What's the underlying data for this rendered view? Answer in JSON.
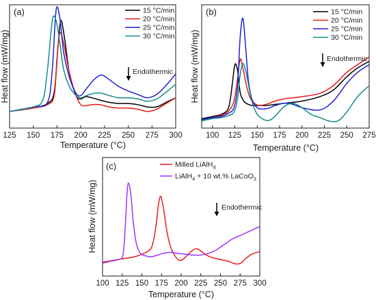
{
  "chart_data": [
    {
      "type": "line",
      "panel_label": "(a)",
      "xlabel": "Temperature (°C)",
      "ylabel": "Heat flow (mW/mg)",
      "xlim": [
        125,
        300
      ],
      "xticks": [
        125,
        150,
        175,
        200,
        225,
        250,
        275,
        300
      ],
      "ylim": [
        0,
        1
      ],
      "yticks_shown": false,
      "grid": false,
      "legend_position": "top-right",
      "annotation": "Endothermic",
      "series": [
        {
          "name": "15 °C/min",
          "color": "#000000",
          "x": [
            125,
            150,
            165,
            172,
            176,
            179,
            183,
            188,
            195,
            200,
            205,
            212,
            220,
            230,
            240,
            250,
            260,
            270,
            280,
            290,
            300
          ],
          "y": [
            0.08,
            0.11,
            0.15,
            0.25,
            0.65,
            0.88,
            0.72,
            0.42,
            0.22,
            0.19,
            0.21,
            0.2,
            0.18,
            0.16,
            0.15,
            0.15,
            0.14,
            0.12,
            0.12,
            0.16,
            0.2
          ]
        },
        {
          "name": "20 °C/min",
          "color": "#e41a1c",
          "x": [
            125,
            150,
            165,
            172,
            175,
            178,
            182,
            188,
            195,
            200,
            205,
            212,
            220,
            230,
            240,
            250,
            260,
            270,
            280,
            290,
            300
          ],
          "y": [
            0.08,
            0.11,
            0.14,
            0.22,
            0.55,
            0.77,
            0.68,
            0.42,
            0.22,
            0.14,
            0.13,
            0.14,
            0.14,
            0.12,
            0.11,
            0.11,
            0.1,
            0.08,
            0.1,
            0.15,
            0.2
          ]
        },
        {
          "name": "25 °C/min",
          "color": "#1f1fd6",
          "x": [
            125,
            150,
            165,
            170,
            174,
            178,
            182,
            188,
            195,
            200,
            206,
            214,
            222,
            230,
            240,
            250,
            260,
            270,
            280,
            290,
            300
          ],
          "y": [
            0.08,
            0.12,
            0.16,
            0.45,
            0.97,
            0.9,
            0.6,
            0.38,
            0.24,
            0.22,
            0.28,
            0.36,
            0.4,
            0.36,
            0.3,
            0.26,
            0.23,
            0.2,
            0.23,
            0.31,
            0.41
          ]
        },
        {
          "name": "30 °C/min",
          "color": "#138a8a",
          "x": [
            125,
            150,
            160,
            165,
            170,
            174,
            178,
            182,
            188,
            195,
            200,
            206,
            214,
            222,
            230,
            240,
            250,
            260,
            270,
            280,
            290,
            300
          ],
          "y": [
            0.08,
            0.12,
            0.18,
            0.45,
            0.88,
            0.88,
            0.68,
            0.45,
            0.3,
            0.22,
            0.2,
            0.22,
            0.24,
            0.24,
            0.22,
            0.2,
            0.2,
            0.19,
            0.17,
            0.19,
            0.25,
            0.32
          ]
        }
      ]
    },
    {
      "type": "line",
      "panel_label": "(b)",
      "xlabel": "Temperature (°C)",
      "ylabel": "Heat flow (mW/mg)",
      "xlim": [
        88,
        275
      ],
      "xticks": [
        100,
        125,
        150,
        175,
        200,
        225,
        250,
        275
      ],
      "ylim": [
        0,
        1
      ],
      "yticks_shown": false,
      "grid": false,
      "legend_position": "top-right",
      "annotation": "Endothermic",
      "series": [
        {
          "name": "15 °C/min",
          "color": "#000000",
          "x": [
            88,
            100,
            110,
            118,
            122,
            125,
            128,
            131,
            135,
            140,
            145,
            150,
            155,
            160,
            170,
            180,
            200,
            220,
            235,
            250,
            262,
            275
          ],
          "y": [
            0.06,
            0.08,
            0.1,
            0.16,
            0.36,
            0.55,
            0.5,
            0.3,
            0.22,
            0.19,
            0.18,
            0.18,
            0.18,
            0.18,
            0.19,
            0.2,
            0.22,
            0.26,
            0.32,
            0.44,
            0.52,
            0.58
          ]
        },
        {
          "name": "20 °C/min",
          "color": "#e41a1c",
          "x": [
            88,
            100,
            110,
            118,
            124,
            128,
            131,
            134,
            138,
            142,
            147,
            152,
            160,
            170,
            180,
            200,
            220,
            235,
            250,
            262,
            275
          ],
          "y": [
            0.05,
            0.07,
            0.09,
            0.13,
            0.22,
            0.42,
            0.6,
            0.52,
            0.36,
            0.25,
            0.2,
            0.18,
            0.19,
            0.22,
            0.24,
            0.26,
            0.29,
            0.36,
            0.48,
            0.55,
            0.62
          ]
        },
        {
          "name": "25 °C/min",
          "color": "#1f1fd6",
          "x": [
            88,
            100,
            110,
            118,
            124,
            128,
            131,
            134,
            137,
            140,
            144,
            150,
            160,
            170,
            180,
            190,
            200,
            220,
            235,
            250,
            262,
            275
          ],
          "y": [
            0.05,
            0.07,
            0.08,
            0.11,
            0.16,
            0.35,
            0.8,
            0.97,
            0.72,
            0.42,
            0.24,
            0.16,
            0.15,
            0.18,
            0.2,
            0.19,
            0.16,
            0.14,
            0.22,
            0.38,
            0.48,
            0.55
          ]
        },
        {
          "name": "30 °C/min",
          "color": "#138a8a",
          "x": [
            88,
            100,
            110,
            118,
            124,
            128,
            131,
            134,
            137,
            140,
            144,
            150,
            158,
            165,
            172,
            180,
            190,
            200,
            210,
            220,
            230,
            240,
            250,
            262,
            275
          ],
          "y": [
            0.04,
            0.06,
            0.07,
            0.09,
            0.12,
            0.24,
            0.46,
            0.56,
            0.5,
            0.38,
            0.22,
            0.1,
            0.05,
            0.05,
            0.1,
            0.17,
            0.2,
            0.16,
            0.1,
            0.07,
            0.04,
            0.04,
            0.12,
            0.26,
            0.36
          ]
        }
      ]
    },
    {
      "type": "line",
      "panel_label": "(c)",
      "xlabel": "Temperature (°C)",
      "ylabel": "Heat flow (mW/mg)",
      "xlim": [
        100,
        300
      ],
      "xticks": [
        100,
        125,
        150,
        175,
        200,
        225,
        250,
        275,
        300
      ],
      "ylim": [
        0,
        1
      ],
      "yticks_shown": false,
      "grid": false,
      "legend_position": "top-center",
      "annotation": "Endothermic",
      "series": [
        {
          "name": "Milled LiAlH",
          "name_subscript": "4",
          "name_suffix": "",
          "color": "#e41a1c",
          "x": [
            100,
            120,
            140,
            155,
            163,
            168,
            171,
            174,
            178,
            182,
            187,
            193,
            198,
            202,
            208,
            214,
            220,
            226,
            232,
            240,
            250,
            260,
            270,
            276,
            282,
            290,
            300
          ],
          "y": [
            0.04,
            0.07,
            0.1,
            0.15,
            0.22,
            0.45,
            0.68,
            0.78,
            0.62,
            0.38,
            0.2,
            0.1,
            0.06,
            0.07,
            0.12,
            0.17,
            0.19,
            0.16,
            0.12,
            0.09,
            0.07,
            0.05,
            0.02,
            0.03,
            0.08,
            0.13,
            0.16
          ]
        },
        {
          "name": "LiAlH",
          "name_subscript": "4",
          "name_suffix": " + 10 wt.% LaCoO",
          "name_subscript2": "3",
          "color": "#9b30ff",
          "x": [
            100,
            110,
            120,
            126,
            129,
            131,
            133,
            136,
            139,
            143,
            148,
            155,
            162,
            170,
            178,
            185,
            195,
            205,
            215,
            225,
            235,
            245,
            255,
            265,
            275,
            285,
            300
          ],
          "y": [
            0.03,
            0.05,
            0.07,
            0.12,
            0.45,
            0.8,
            0.93,
            0.8,
            0.5,
            0.25,
            0.14,
            0.11,
            0.1,
            0.12,
            0.14,
            0.15,
            0.14,
            0.13,
            0.12,
            0.12,
            0.14,
            0.18,
            0.24,
            0.3,
            0.34,
            0.38,
            0.44
          ]
        }
      ]
    }
  ]
}
